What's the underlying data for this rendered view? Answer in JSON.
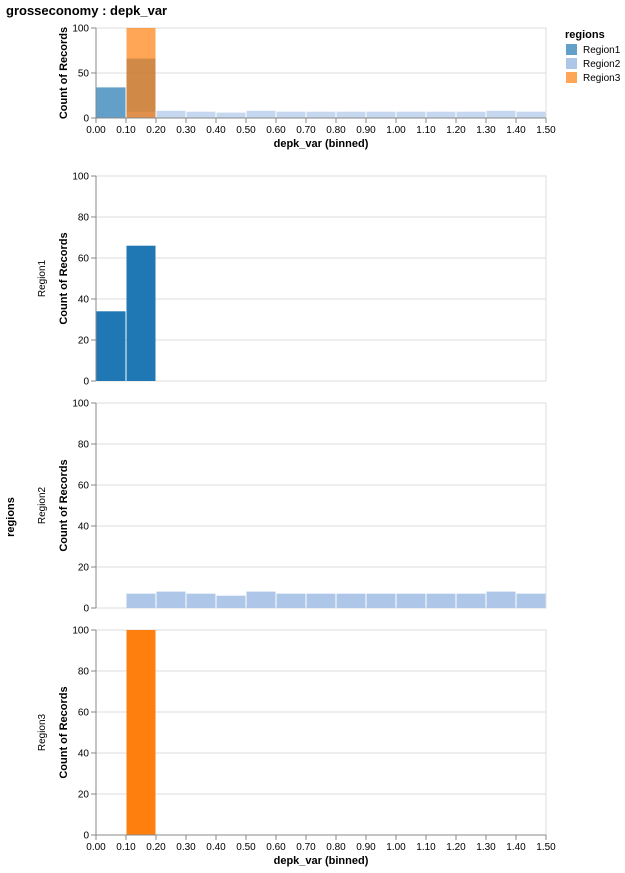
{
  "title": "grosseconomy : depk_var",
  "legend": {
    "title": "regions",
    "items": [
      {
        "label": "Region1",
        "color": "#1f77b4"
      },
      {
        "label": "Region2",
        "color": "#aec7e8"
      },
      {
        "label": "Region3",
        "color": "#ff7f0e"
      }
    ]
  },
  "facet_title": "regions",
  "chart_data": [
    {
      "type": "bar",
      "subtype": "histogram-overlay",
      "xlabel": "depk_var (binned)",
      "ylabel": "Count of Records",
      "ylim": [
        0,
        100
      ],
      "yticks": [
        0,
        50,
        100
      ],
      "bin_edges": [
        0.0,
        0.1,
        0.2,
        0.3,
        0.4,
        0.5,
        0.6,
        0.7,
        0.8,
        0.9,
        1.0,
        1.1,
        1.2,
        1.3,
        1.4,
        1.5
      ],
      "xtick_labels": [
        "0.00",
        "0.10",
        "0.20",
        "0.30",
        "0.40",
        "0.50",
        "0.60",
        "0.70",
        "0.80",
        "0.90",
        "1.00",
        "1.10",
        "1.20",
        "1.30",
        "1.40",
        "1.50"
      ],
      "series": [
        {
          "name": "Region1",
          "values": [
            34,
            66,
            0,
            0,
            0,
            0,
            0,
            0,
            0,
            0,
            0,
            0,
            0,
            0,
            0
          ]
        },
        {
          "name": "Region2",
          "values": [
            0,
            7,
            8,
            7,
            6,
            8,
            7,
            7,
            7,
            7,
            7,
            7,
            7,
            8,
            7
          ]
        },
        {
          "name": "Region3",
          "values": [
            0,
            100,
            0,
            0,
            0,
            0,
            0,
            0,
            0,
            0,
            0,
            0,
            0,
            0,
            0
          ]
        }
      ]
    },
    {
      "type": "bar",
      "subtype": "histogram-facets",
      "xlabel": "depk_var (binned)",
      "ylabel": "Count of Records",
      "ylim": [
        0,
        100
      ],
      "yticks": [
        0,
        20,
        40,
        60,
        80,
        100
      ],
      "bin_edges": [
        0.0,
        0.1,
        0.2,
        0.3,
        0.4,
        0.5,
        0.6,
        0.7,
        0.8,
        0.9,
        1.0,
        1.1,
        1.2,
        1.3,
        1.4,
        1.5
      ],
      "xtick_labels": [
        "0.00",
        "0.10",
        "0.20",
        "0.30",
        "0.40",
        "0.50",
        "0.60",
        "0.70",
        "0.80",
        "0.90",
        "1.00",
        "1.10",
        "1.20",
        "1.30",
        "1.40",
        "1.50"
      ],
      "facets": [
        {
          "name": "Region1",
          "values": [
            34,
            66,
            0,
            0,
            0,
            0,
            0,
            0,
            0,
            0,
            0,
            0,
            0,
            0,
            0
          ]
        },
        {
          "name": "Region2",
          "values": [
            0,
            7,
            8,
            7,
            6,
            8,
            7,
            7,
            7,
            7,
            7,
            7,
            7,
            8,
            7
          ]
        },
        {
          "name": "Region3",
          "values": [
            0,
            100,
            0,
            0,
            0,
            0,
            0,
            0,
            0,
            0,
            0,
            0,
            0,
            0,
            0
          ]
        }
      ]
    }
  ]
}
